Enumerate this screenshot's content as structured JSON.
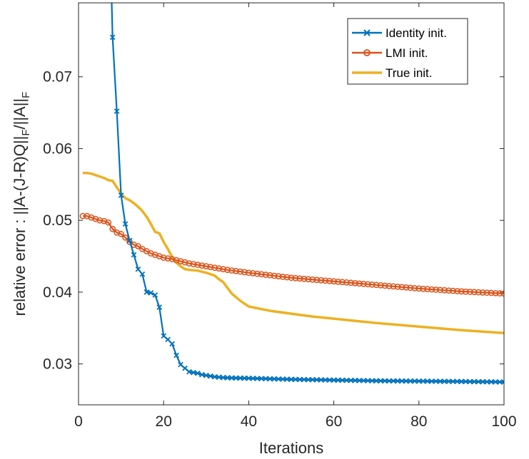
{
  "chart_data": {
    "type": "line",
    "title": "",
    "xlabel": "Iterations",
    "ylabel_parts": [
      "relative error :  ||A-(J-R)Q||",
      "F",
      "/||A||",
      "F"
    ],
    "xlim": [
      0,
      100
    ],
    "ylim": [
      0.0243,
      0.0803
    ],
    "xticks": [
      0,
      20,
      40,
      60,
      80,
      100
    ],
    "yticks": [
      0.03,
      0.04,
      0.05,
      0.06,
      0.07
    ],
    "xtick_labels": [
      "0",
      "20",
      "40",
      "60",
      "80",
      "100"
    ],
    "ytick_labels": [
      "0.03",
      "0.04",
      "0.05",
      "0.06",
      "0.07"
    ],
    "legend_position": "top-right",
    "series": [
      {
        "name": "Identity init.",
        "color": "#0072bd",
        "marker": "x",
        "points": [
          [
            8,
            0.0755
          ],
          [
            9,
            0.0652
          ],
          [
            10,
            0.0535
          ],
          [
            11,
            0.0495
          ],
          [
            12,
            0.0472
          ],
          [
            13,
            0.0452
          ],
          [
            14,
            0.0432
          ],
          [
            15,
            0.0425
          ],
          [
            16,
            0.04
          ],
          [
            17,
            0.0399
          ],
          [
            18,
            0.0396
          ],
          [
            19,
            0.0379
          ],
          [
            20,
            0.0339
          ],
          [
            21,
            0.0334
          ],
          [
            22,
            0.0328
          ],
          [
            23,
            0.0312
          ],
          [
            24,
            0.0299
          ],
          [
            25,
            0.0294
          ],
          [
            26,
            0.0289
          ],
          [
            27,
            0.0288
          ],
          [
            28,
            0.0287
          ],
          [
            29,
            0.0285
          ],
          [
            30,
            0.0284
          ],
          [
            31,
            0.0283
          ],
          [
            32,
            0.0282
          ],
          [
            33,
            0.02815
          ],
          [
            34,
            0.0281
          ],
          [
            36,
            0.02805
          ],
          [
            40,
            0.028
          ],
          [
            50,
            0.02785
          ],
          [
            60,
            0.02775
          ],
          [
            70,
            0.02765
          ],
          [
            80,
            0.0276
          ],
          [
            90,
            0.02755
          ],
          [
            100,
            0.02748
          ]
        ],
        "start_value_at_top": 0.0803,
        "start_x": 7.8
      },
      {
        "name": "LMI init.",
        "color": "#d95319",
        "marker": "o",
        "points": [
          [
            1,
            0.0506
          ],
          [
            2,
            0.0506
          ],
          [
            3,
            0.0504
          ],
          [
            4,
            0.0502
          ],
          [
            5,
            0.05
          ],
          [
            6,
            0.0499
          ],
          [
            7,
            0.0497
          ],
          [
            8,
            0.0488
          ],
          [
            9,
            0.0483
          ],
          [
            10,
            0.0481
          ],
          [
            11,
            0.0476
          ],
          [
            12,
            0.047
          ],
          [
            13,
            0.0466
          ],
          [
            14,
            0.0464
          ],
          [
            15,
            0.046
          ],
          [
            16,
            0.0457
          ],
          [
            17,
            0.0454
          ],
          [
            18,
            0.0452
          ],
          [
            19,
            0.045
          ],
          [
            20,
            0.0448
          ],
          [
            22,
            0.0446
          ],
          [
            24,
            0.0443
          ],
          [
            26,
            0.044
          ],
          [
            28,
            0.0438
          ],
          [
            30,
            0.0436
          ],
          [
            35,
            0.0431
          ],
          [
            40,
            0.0427
          ],
          [
            50,
            0.042
          ],
          [
            60,
            0.0415
          ],
          [
            70,
            0.041
          ],
          [
            80,
            0.0405
          ],
          [
            90,
            0.0401
          ],
          [
            100,
            0.0398
          ]
        ]
      },
      {
        "name": "True init.",
        "color": "#edb120",
        "marker": "none",
        "points": [
          [
            1,
            0.0566
          ],
          [
            2,
            0.0566
          ],
          [
            3,
            0.0565
          ],
          [
            4,
            0.0563
          ],
          [
            5,
            0.0561
          ],
          [
            6,
            0.0559
          ],
          [
            7,
            0.0556
          ],
          [
            8,
            0.0555
          ],
          [
            9,
            0.0546
          ],
          [
            10,
            0.0537
          ],
          [
            11,
            0.0531
          ],
          [
            12,
            0.0528
          ],
          [
            13,
            0.0524
          ],
          [
            14,
            0.0519
          ],
          [
            15,
            0.0513
          ],
          [
            16,
            0.0505
          ],
          [
            17,
            0.0495
          ],
          [
            18,
            0.0484
          ],
          [
            19,
            0.0482
          ],
          [
            20,
            0.047
          ],
          [
            21,
            0.046
          ],
          [
            22,
            0.0449
          ],
          [
            23,
            0.0441
          ],
          [
            24,
            0.0436
          ],
          [
            25,
            0.0432
          ],
          [
            26,
            0.0431
          ],
          [
            28,
            0.043
          ],
          [
            30,
            0.0427
          ],
          [
            32,
            0.0423
          ],
          [
            33,
            0.0418
          ],
          [
            34,
            0.0414
          ],
          [
            35,
            0.0406
          ],
          [
            36,
            0.0398
          ],
          [
            38,
            0.0388
          ],
          [
            40,
            0.038
          ],
          [
            45,
            0.0374
          ],
          [
            50,
            0.037
          ],
          [
            55,
            0.0366
          ],
          [
            60,
            0.0363
          ],
          [
            70,
            0.0357
          ],
          [
            80,
            0.0352
          ],
          [
            90,
            0.0347
          ],
          [
            100,
            0.0343
          ]
        ]
      }
    ]
  }
}
